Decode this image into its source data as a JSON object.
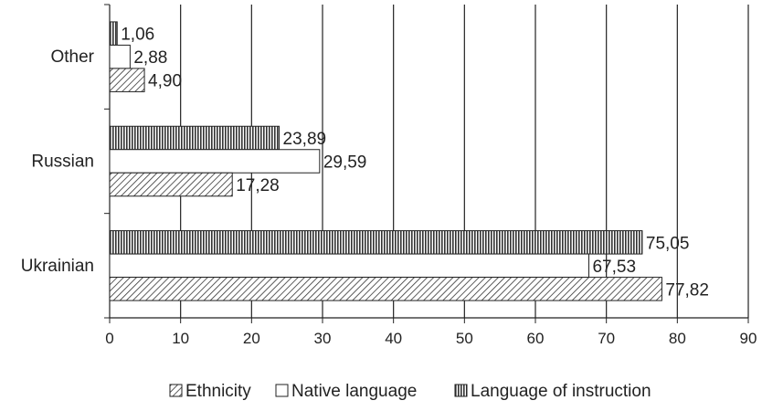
{
  "chart_data": {
    "type": "bar",
    "orientation": "horizontal",
    "categories": [
      "Other",
      "Russian",
      "Ukrainian"
    ],
    "series": [
      {
        "name": "Ethnicity",
        "values": [
          4.9,
          17.28,
          77.82
        ],
        "labels": [
          "4,90",
          "17,28",
          "77,82"
        ],
        "pattern": "diagonal-hatch"
      },
      {
        "name": "Native language",
        "values": [
          2.88,
          29.59,
          67.53
        ],
        "labels": [
          "2,88",
          "29,59",
          "67,53"
        ],
        "pattern": "white"
      },
      {
        "name": "Language of instruction",
        "values": [
          1.06,
          23.89,
          75.05
        ],
        "labels": [
          "1,06",
          "23,89",
          "75,05"
        ],
        "pattern": "vertical-stripes"
      }
    ],
    "xlim": [
      0,
      90
    ],
    "xticks": [
      "0",
      "10",
      "20",
      "30",
      "40",
      "50",
      "60",
      "70",
      "80",
      "90"
    ],
    "grid": "vertical",
    "legend_position": "bottom",
    "title": "",
    "xlabel": "",
    "ylabel": ""
  }
}
